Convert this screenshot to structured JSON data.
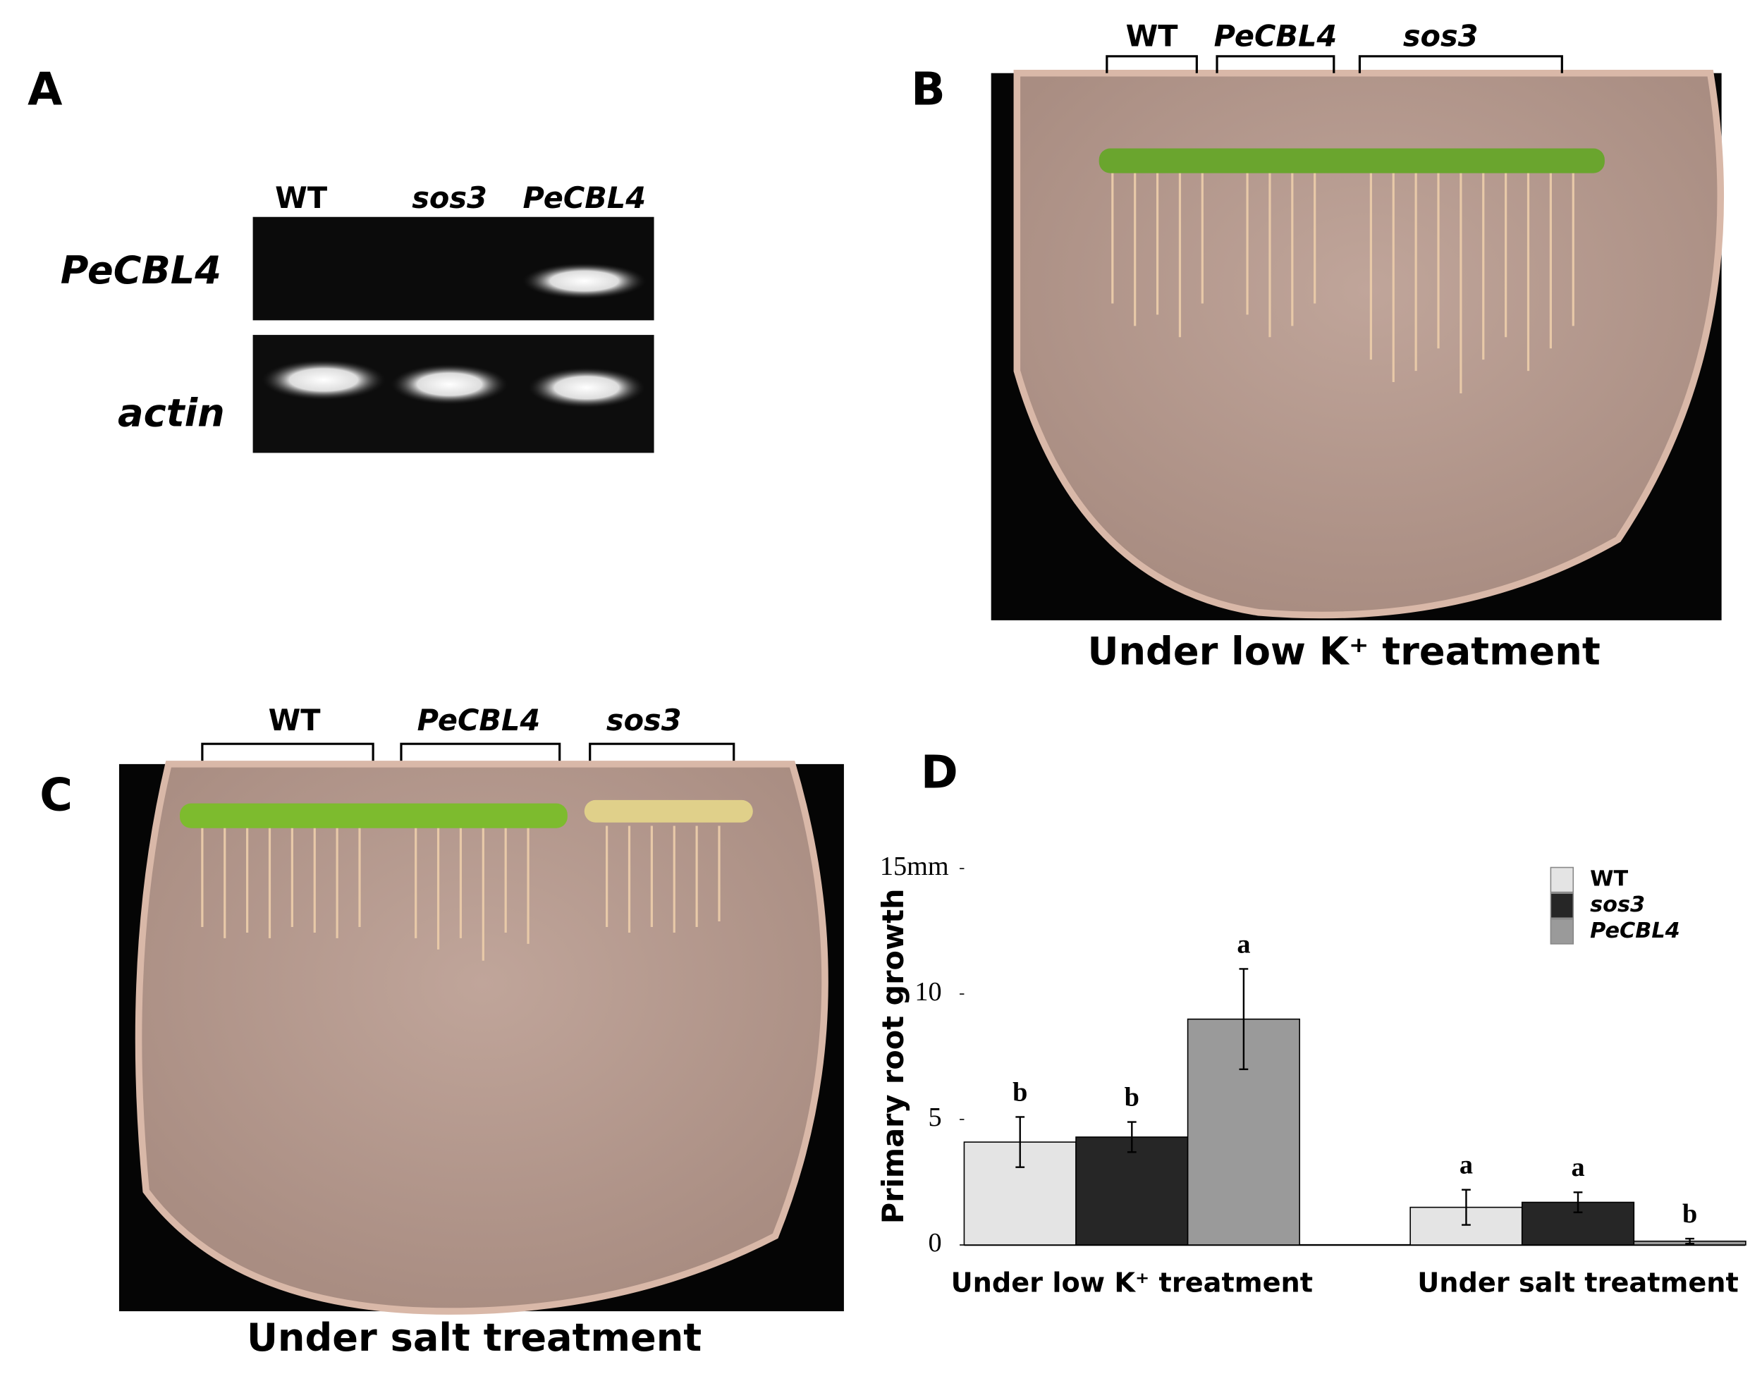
{
  "panel_a": {
    "label": "A",
    "columns": [
      "WT",
      "sos3",
      "PeCBL4"
    ],
    "rows": [
      "PeCBL4",
      "actin"
    ]
  },
  "panel_b": {
    "label": "B",
    "groups": [
      "WT",
      "PeCBL4",
      "sos3"
    ],
    "caption": "Under low K⁺ treatment"
  },
  "panel_c": {
    "label": "C",
    "groups": [
      "WT",
      "PeCBL4",
      "sos3"
    ],
    "caption": "Under salt treatment"
  },
  "panel_d": {
    "label": "D"
  },
  "chart_data": {
    "type": "bar",
    "y_label": "Primary root growth",
    "categories": [
      "Under low K⁺ treatment",
      "Under salt treatment"
    ],
    "series": [
      {
        "name": "WT",
        "color": "#e4e4e4",
        "values": [
          4.1,
          1.5
        ],
        "errors": [
          1.0,
          0.7
        ],
        "letters": [
          "b",
          "a"
        ]
      },
      {
        "name": "sos3",
        "color": "#262626",
        "values": [
          4.3,
          1.7
        ],
        "errors": [
          0.6,
          0.4
        ],
        "letters": [
          "b",
          "a"
        ]
      },
      {
        "name": "PeCBL4",
        "color": "#9a9a9a",
        "values": [
          9.0,
          0.15
        ],
        "errors": [
          2.0,
          0.1
        ],
        "letters": [
          "a",
          "b"
        ]
      }
    ],
    "ylim": [
      0,
      15
    ],
    "yticks": [
      0,
      5,
      10,
      {
        "value": 15,
        "label": "15mm"
      }
    ]
  }
}
